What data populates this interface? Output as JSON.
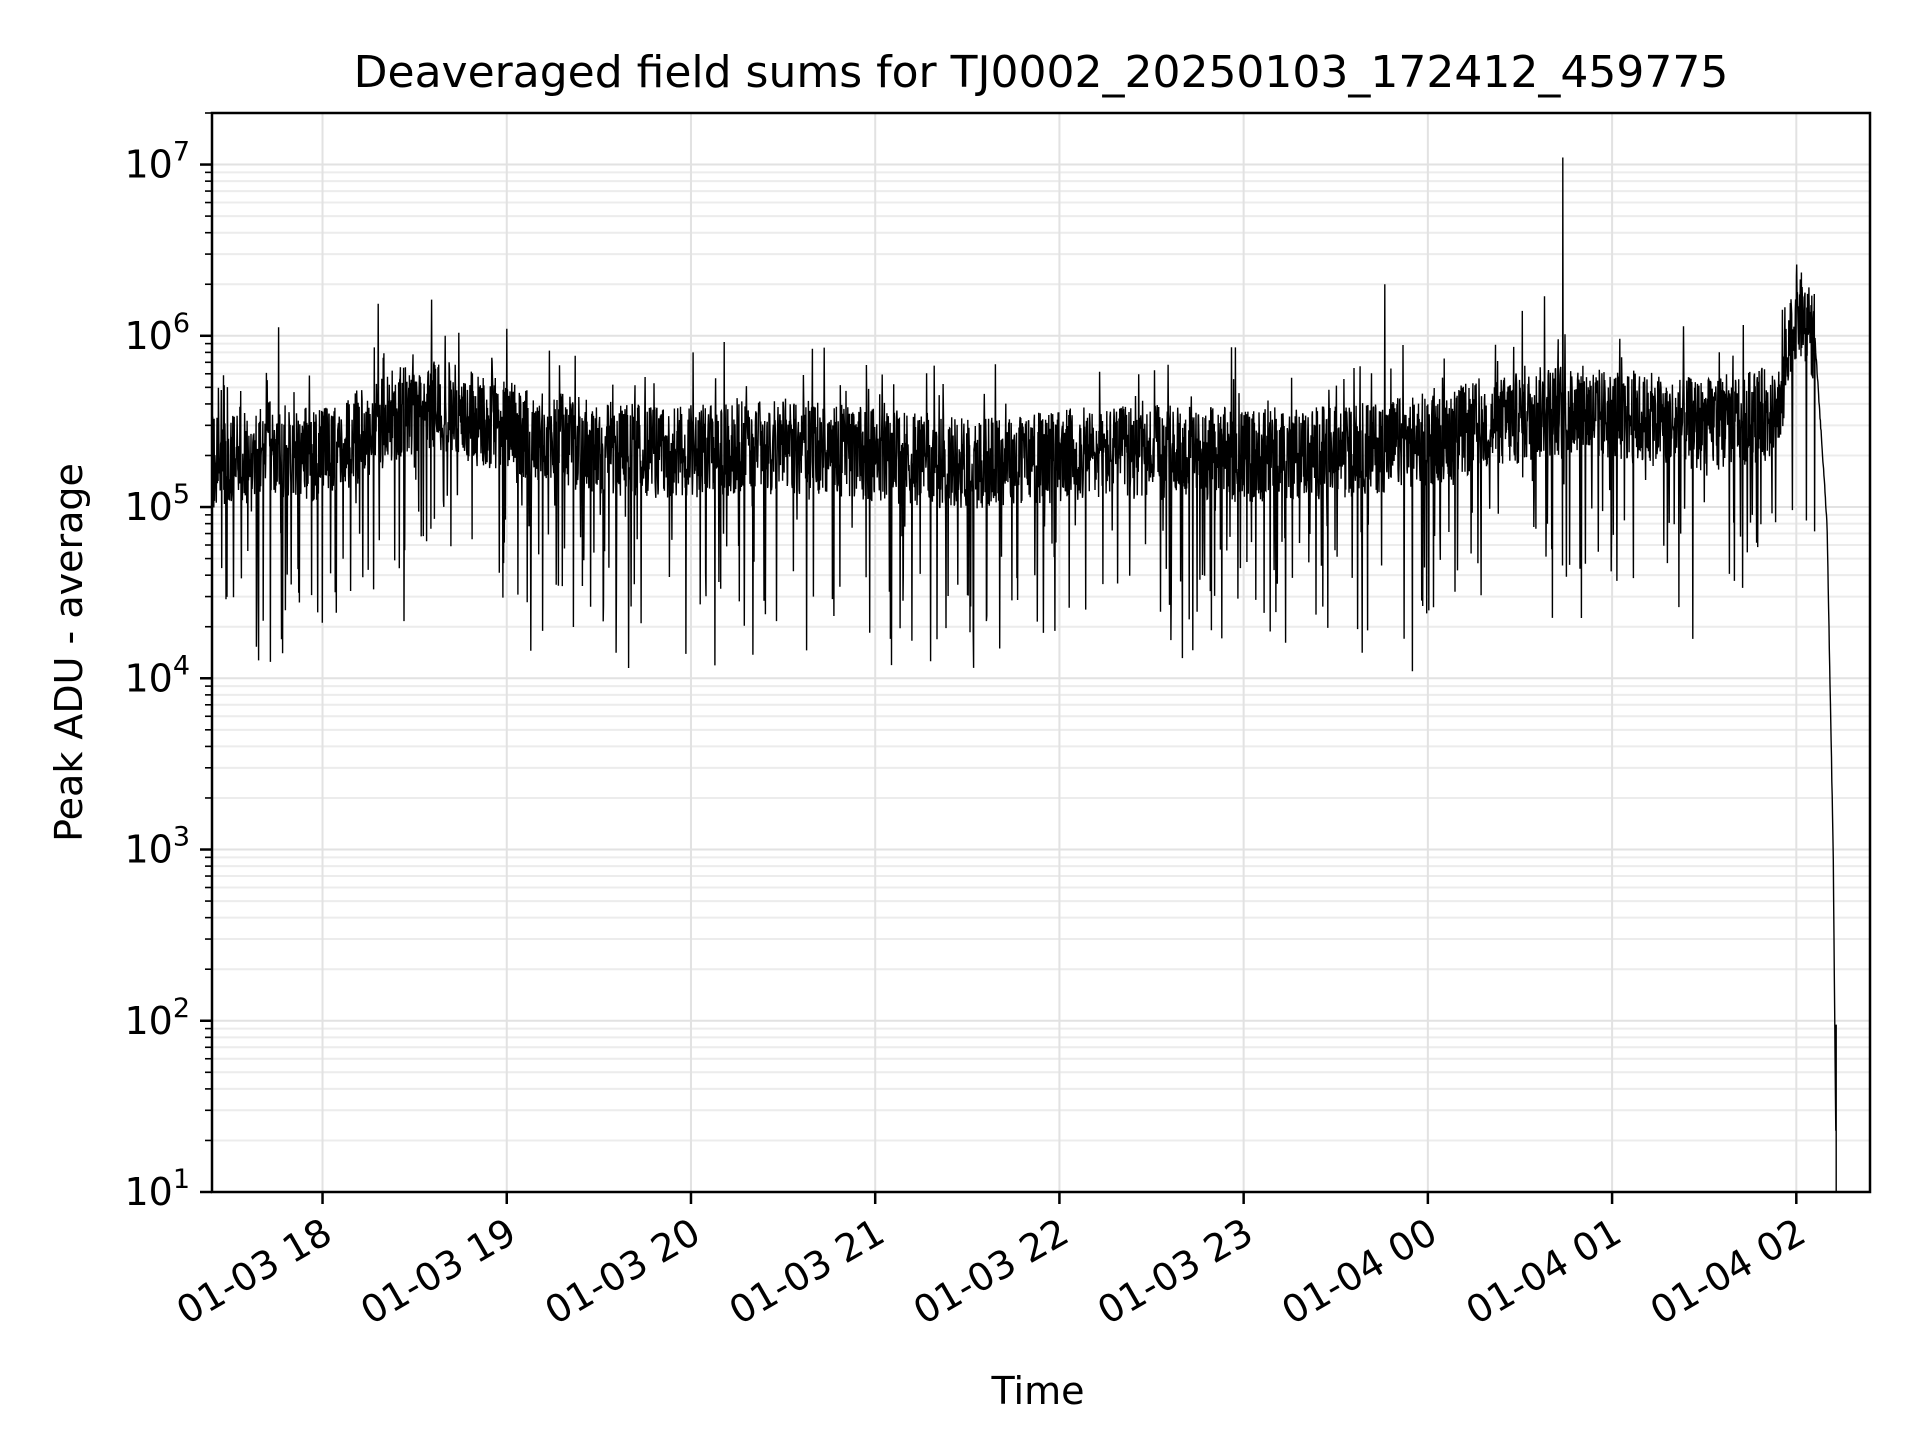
{
  "chart_data": {
    "type": "line",
    "title": "Deaveraged field sums for TJ0002_20250103_172412_459775",
    "xlabel": "Time",
    "ylabel": "Peak ADU - average",
    "yscale": "log",
    "ylim": [
      10,
      20000000
    ],
    "xlim": [
      "2025-01-03 17:24",
      "2025-01-04 02:24"
    ],
    "grid": true,
    "x_ticks": [
      "01-03 18",
      "01-03 19",
      "01-03 20",
      "01-03 21",
      "01-03 22",
      "01-03 23",
      "01-04 00",
      "01-04 01",
      "01-04 02"
    ],
    "y_ticks": [
      {
        "base": "10",
        "exp": "1"
      },
      {
        "base": "10",
        "exp": "2"
      },
      {
        "base": "10",
        "exp": "3"
      },
      {
        "base": "10",
        "exp": "4"
      },
      {
        "base": "10",
        "exp": "5"
      },
      {
        "base": "10",
        "exp": "6"
      },
      {
        "base": "10",
        "exp": "7"
      }
    ],
    "series": [
      {
        "color": "#000000",
        "x": [
          "2025-01-03 17:24",
          "2025-01-03 17:30",
          "2025-01-03 17:36",
          "2025-01-03 17:42",
          "2025-01-03 17:48",
          "2025-01-03 18:00",
          "2025-01-03 18:12",
          "2025-01-03 18:24",
          "2025-01-03 18:36",
          "2025-01-03 18:48",
          "2025-01-03 19:00",
          "2025-01-03 19:12",
          "2025-01-03 19:30",
          "2025-01-03 20:00",
          "2025-01-03 20:30",
          "2025-01-03 21:00",
          "2025-01-03 21:30",
          "2025-01-03 22:00",
          "2025-01-03 22:30",
          "2025-01-03 23:00",
          "2025-01-03 23:30",
          "2025-01-03 23:48",
          "2025-01-04 00:00",
          "2025-01-04 00:30",
          "2025-01-04 00:44",
          "2025-01-04 01:00",
          "2025-01-04 01:30",
          "2025-01-04 01:54",
          "2025-01-04 02:00",
          "2025-01-04 02:06",
          "2025-01-04 02:10",
          "2025-01-04 02:12",
          "2025-01-04 02:13"
        ],
        "y": [
          180000,
          200000,
          170000,
          230000,
          210000,
          200000,
          260000,
          350000,
          420000,
          330000,
          290000,
          260000,
          220000,
          210000,
          230000,
          200000,
          180000,
          200000,
          210000,
          200000,
          210000,
          230000,
          250000,
          330000,
          380000,
          340000,
          300000,
          360000,
          1400000,
          1000000,
          80000,
          1000,
          12
        ],
        "spikes": [
          {
            "x": "2025-01-03 17:47",
            "y": 14000
          },
          {
            "x": "2025-01-03 18:40",
            "y": 1000000
          },
          {
            "x": "2025-01-03 19:00",
            "y": 1100000
          },
          {
            "x": "2025-01-03 21:32",
            "y": 11500
          },
          {
            "x": "2025-01-03 23:46",
            "y": 2000000
          },
          {
            "x": "2025-01-03 23:55",
            "y": 11000
          },
          {
            "x": "2025-01-04 00:38",
            "y": 1700000
          },
          {
            "x": "2025-01-04 00:44",
            "y": 11000000
          },
          {
            "x": "2025-01-04 02:13",
            "y": 95
          }
        ]
      }
    ]
  }
}
